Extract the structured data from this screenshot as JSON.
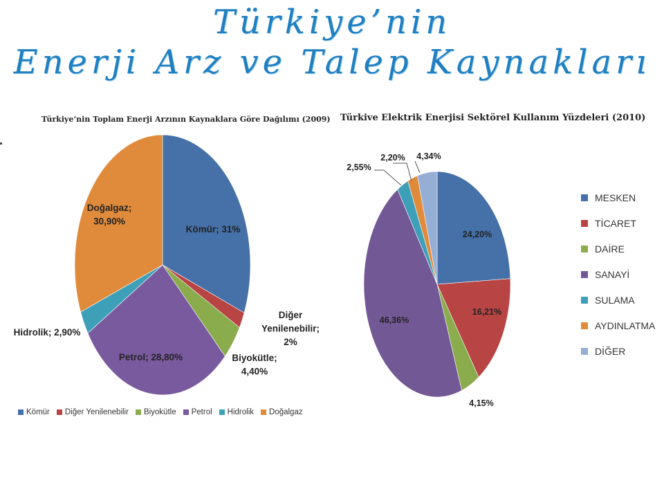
{
  "page": {
    "title_line1": "Türkiye’nin",
    "title_line2": "Enerji Arz ve Talep Kaynakları"
  },
  "chart_data": [
    {
      "type": "pie",
      "title": "Türkiye’nin Toplam Enerji Arzının Kaynaklara Göre Dağılımı (2009)",
      "slices": [
        {
          "name": "Kömür",
          "value": 31,
          "label": "Kömür; 31%",
          "color": "#4570a8"
        },
        {
          "name": "Diğer Yenilenebilir",
          "value": 2,
          "label": "Diğer Yenilenebilir; 2%",
          "color": "#b84444"
        },
        {
          "name": "Biyokütle",
          "value": 4.4,
          "label": "Biyokütle; 4,40%",
          "color": "#8aac4d"
        },
        {
          "name": "Petrol",
          "value": 28.8,
          "label": "Petrol; 28,80%",
          "color": "#7a5a9e"
        },
        {
          "name": "Hidrolik",
          "value": 2.9,
          "label": "Hidrolik; 2,90%",
          "color": "#3ea0b8"
        },
        {
          "name": "Doğalgaz",
          "value": 30.9,
          "label": "Doğalgaz; 30,90%",
          "color": "#e08b3c"
        }
      ],
      "legend_position": "bottom"
    },
    {
      "type": "pie",
      "title": "Türkive Elektrik Enerjisi Sektörel Kullanım Yüzdeleri",
      "year": "(2010)",
      "slices": [
        {
          "name": "MESKEN",
          "value": 24.2,
          "label": "24,20%",
          "color": "#4570a8"
        },
        {
          "name": "TİCARET",
          "value": 16.21,
          "label": "16,21%",
          "color": "#b84444"
        },
        {
          "name": "DAİRE",
          "value": 4.15,
          "label": "4,15%",
          "color": "#8aac4d"
        },
        {
          "name": "SANAYİ",
          "value": 46.36,
          "label": "46,36%",
          "color": "#735896"
        },
        {
          "name": "SULAMA",
          "value": 2.55,
          "label": "2,55%",
          "color": "#3ea0b8"
        },
        {
          "name": "AYDINLATMA",
          "value": 2.2,
          "label": "2,20%",
          "color": "#e08b3c"
        },
        {
          "name": "DİĞER",
          "value": 4.34,
          "label": "4,34%",
          "color": "#95aed6"
        }
      ],
      "legend_position": "right"
    }
  ]
}
